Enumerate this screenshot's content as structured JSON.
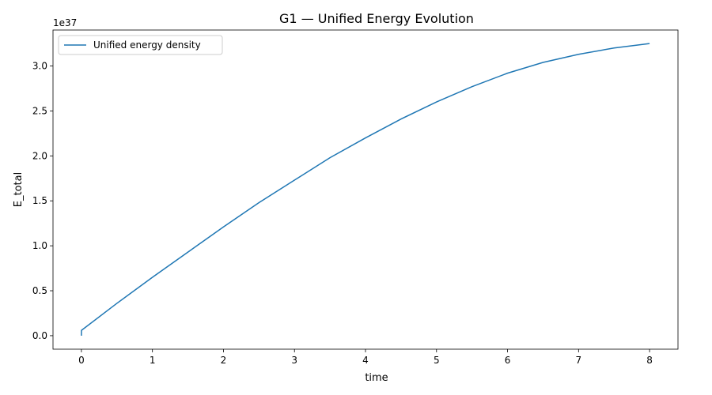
{
  "chart_data": {
    "type": "line",
    "title": "G1 — Unified Energy Evolution",
    "xlabel": "time",
    "ylabel": "E_total",
    "y_offset_label": "1e37",
    "xlim": [
      -0.4,
      8.4
    ],
    "ylim": [
      -0.15,
      3.4
    ],
    "x_ticks": [
      0,
      1,
      2,
      3,
      4,
      5,
      6,
      7,
      8
    ],
    "x_tick_labels": [
      "0",
      "1",
      "2",
      "3",
      "4",
      "5",
      "6",
      "7",
      "8"
    ],
    "y_ticks": [
      0.0,
      0.5,
      1.0,
      1.5,
      2.0,
      2.5,
      3.0
    ],
    "y_tick_labels": [
      "0.0",
      "0.5",
      "1.0",
      "1.5",
      "2.0",
      "2.5",
      "3.0"
    ],
    "y_units": "x 1e37",
    "grid": false,
    "legend_position": "top-left",
    "series": [
      {
        "name": "Unified energy density",
        "color": "#1f77b4",
        "x": [
          0,
          0.001,
          0.5,
          1,
          1.5,
          2,
          2.5,
          3,
          3.5,
          4,
          4.5,
          5,
          5.5,
          6,
          6.5,
          7,
          7.5,
          8
        ],
        "y": [
          0.0,
          0.06,
          0.36,
          0.65,
          0.93,
          1.21,
          1.48,
          1.73,
          1.98,
          2.2,
          2.41,
          2.6,
          2.77,
          2.92,
          3.04,
          3.13,
          3.2,
          3.25
        ]
      }
    ]
  }
}
